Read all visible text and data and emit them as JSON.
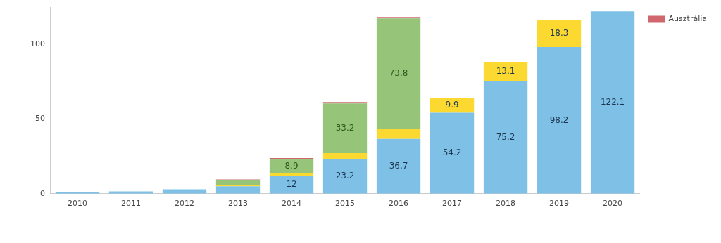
{
  "chart_data": {
    "type": "bar",
    "stacked": true,
    "categories": [
      "2010",
      "2011",
      "2012",
      "2013",
      "2014",
      "2015",
      "2016",
      "2017",
      "2018",
      "2019",
      "2020"
    ],
    "series": [
      {
        "color": "#7fc1e6",
        "values": [
          0.8,
          1.5,
          3,
          5,
          12,
          23.2,
          36.7,
          54.2,
          75.2,
          98.2,
          122.1
        ],
        "value_labels": [
          null,
          null,
          null,
          null,
          "12",
          "23.2",
          "36.7",
          "54.2",
          "75.2",
          "98.2",
          "122.1"
        ]
      },
      {
        "color": "#fcd931",
        "values": [
          null,
          null,
          null,
          1,
          2,
          4,
          6.8,
          9.9,
          13.1,
          18.3,
          null
        ],
        "value_labels": [
          null,
          null,
          null,
          null,
          null,
          null,
          null,
          "9.9",
          "13.1",
          "18.3",
          null
        ]
      },
      {
        "color": "#96c57a",
        "values": [
          null,
          null,
          null,
          3,
          8.9,
          33.2,
          73.8,
          null,
          null,
          null,
          null
        ],
        "value_labels": [
          null,
          null,
          null,
          null,
          "8.9",
          "33.2",
          "73.8",
          null,
          null,
          null,
          null
        ]
      },
      {
        "name": "Ausztrália",
        "color": "#d0676f",
        "values": [
          null,
          null,
          null,
          0.5,
          1,
          1,
          1,
          null,
          null,
          null,
          null
        ]
      }
    ],
    "ylim": [
      0,
      125
    ],
    "yticks": [
      0,
      50,
      100
    ],
    "grid": false,
    "legend": "top right"
  }
}
